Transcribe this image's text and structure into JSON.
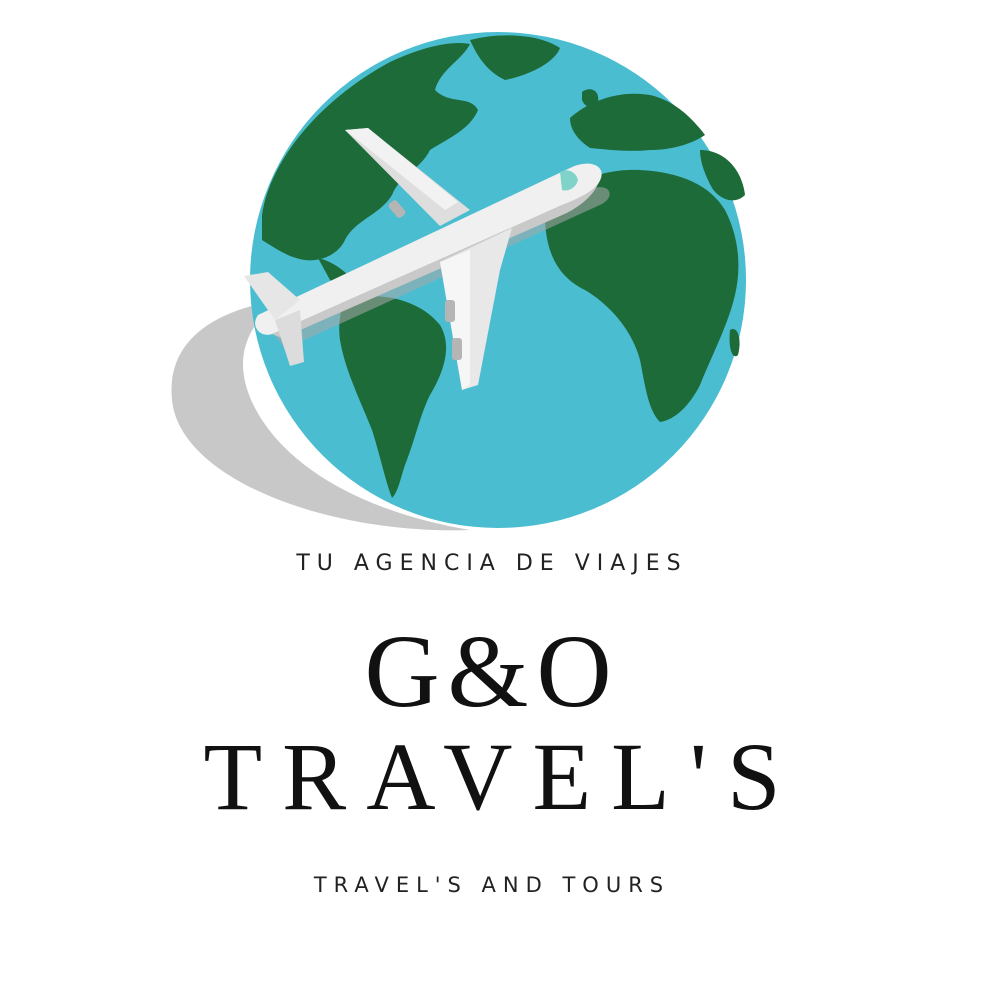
{
  "logo": {
    "tagline": "TU AGENCIA DE VIAJES",
    "brand_line_1": "G&O",
    "brand_line_2": "TRAVEL'S",
    "subtitle": "TRAVEL'S AND TOURS",
    "icon": "globe-with-airplane-icon"
  },
  "colors": {
    "ocean": "#4bbdd1",
    "land": "#1e6b3a",
    "swoosh": "#c8c8c8",
    "plane_body": "#efefef",
    "plane_shadow": "#bdbdbd",
    "text": "#111111"
  }
}
